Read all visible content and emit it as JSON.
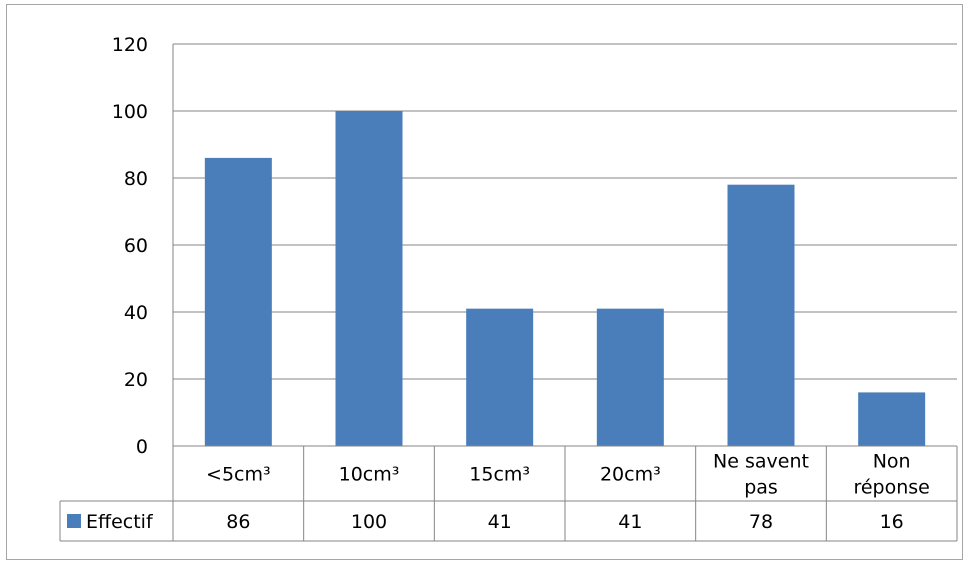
{
  "chart_data": {
    "type": "bar",
    "categories": [
      [
        "<5cm³"
      ],
      [
        "10cm³"
      ],
      [
        "15cm³"
      ],
      [
        "20cm³"
      ],
      [
        "Ne savent",
        "pas"
      ],
      [
        "Non",
        "réponse"
      ]
    ],
    "series": [
      {
        "name": "Effectif",
        "values": [
          86,
          100,
          41,
          41,
          78,
          16
        ],
        "color": "#4a7ebb"
      }
    ],
    "yticks": [
      "0",
      "20",
      "40",
      "60",
      "80",
      "100",
      "120"
    ],
    "ylim": [
      0,
      120
    ],
    "grid": true,
    "legend": "data-table-left",
    "data_table": true
  }
}
